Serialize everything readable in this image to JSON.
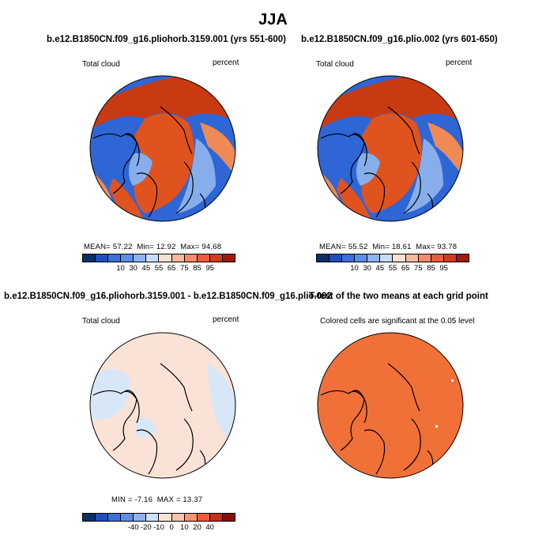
{
  "page_title": "JJA",
  "panels": {
    "top_left": {
      "title": "b.e12.B1850CN.f09_g16.pliohorb.3159.001 (yrs 551-600)",
      "variable": "Total cloud",
      "units": "percent",
      "mean_label": "MEAN=",
      "mean_value": "57.22",
      "min_label": "Min=",
      "min_value": "12.92",
      "max_label": "Max=",
      "max_value": "94.68"
    },
    "top_right": {
      "title": "b.e12.B1850CN.f09_g16.plio.002 (yrs 601-650)",
      "variable": "Total cloud",
      "units": "percent",
      "mean_label": "MEAN=",
      "mean_value": "55.52",
      "min_label": "Min=",
      "min_value": "18.61",
      "max_label": "Max=",
      "max_value": "93.78"
    },
    "bottom_left": {
      "title": "b.e12.B1850CN.f09_g16.pliohorb.3159.001 - b.e12.B1850CN.f09_g16.plio.002",
      "variable": "Total cloud",
      "units": "percent",
      "min_label": "MIN =",
      "min_value": "-7.16",
      "max_label": "MAX =",
      "max_value": "13.37"
    },
    "bottom_right": {
      "title": "T-test of the two means at each grid point",
      "note": "Colored cells are significant at the 0.05 level"
    }
  },
  "colorbars": {
    "absolute": {
      "colors": [
        "#08306b",
        "#1f4fbf",
        "#3a6fdc",
        "#5b8ee8",
        "#8fb3f0",
        "#c7dcf7",
        "#fde0d0",
        "#fbb79c",
        "#f7896a",
        "#ee5a3c",
        "#d63a1e",
        "#a01a0a"
      ],
      "tick_labels": [
        "10",
        "30",
        "45",
        "55",
        "65",
        "75",
        "85",
        "95"
      ]
    },
    "difference": {
      "colors": [
        "#08306b",
        "#1f4fbf",
        "#3a6fdc",
        "#5b8ee8",
        "#8fb3f0",
        "#cfe1f7",
        "#fbe3d6",
        "#fbc4aa",
        "#f7936f",
        "#ee5a3c",
        "#c7301a",
        "#8b0f05"
      ],
      "tick_labels": [
        "-40",
        "-20",
        "-10",
        "0",
        "10",
        "20",
        "40"
      ]
    }
  },
  "colors": {
    "dark_red": "#c83a12",
    "red": "#e0531f",
    "orange": "#f08a55",
    "blue": "#2f66d6",
    "light_blue": "#87aeea",
    "pale_blue": "#d8e7f8",
    "pale_pink": "#fae3d6",
    "sig_orange": "#f07038"
  }
}
